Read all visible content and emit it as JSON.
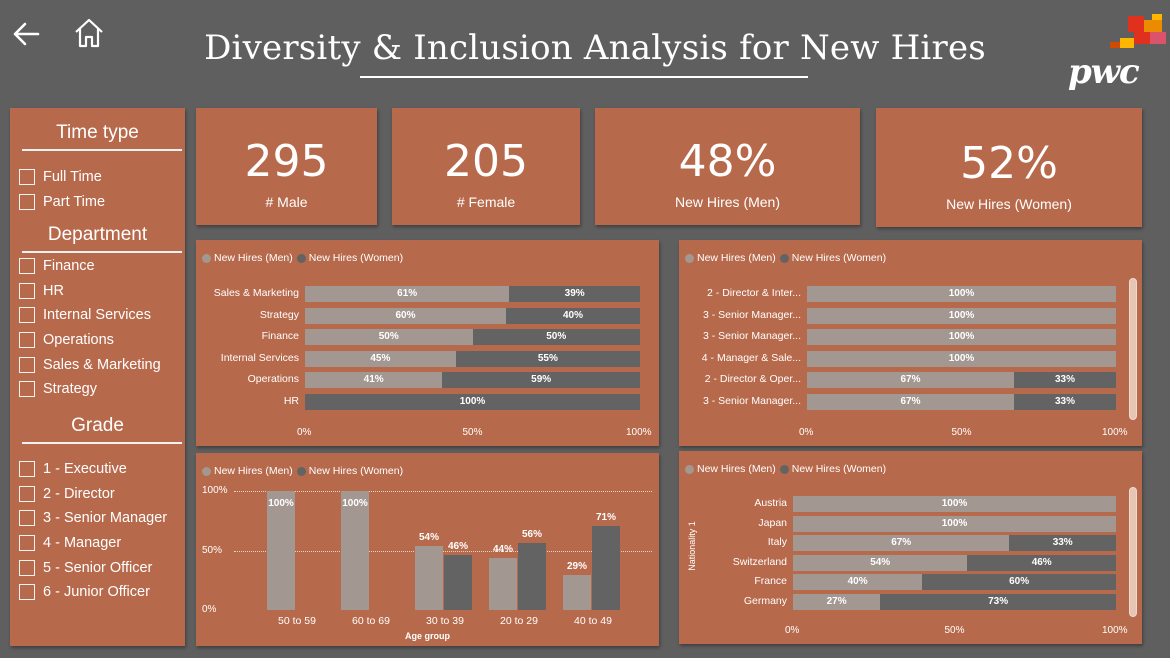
{
  "header": {
    "title": "Diversity & Inclusion Analysis for New Hires",
    "logo_text": "pwc"
  },
  "colors": {
    "panel": "#b7694b",
    "men": "#a39791",
    "women": "#636363",
    "background": "#5f5f5f"
  },
  "slicer": {
    "time_type": {
      "title": "Time type",
      "options": [
        "Full Time",
        "Part Time"
      ]
    },
    "department": {
      "title": "Department",
      "options": [
        "Finance",
        "HR",
        "Internal Services",
        "Operations",
        "Sales & Marketing",
        "Strategy"
      ]
    },
    "grade": {
      "title": "Grade",
      "options": [
        "1 - Executive",
        "2 - Director",
        "3 - Senior Manager",
        "4 - Manager",
        "5 - Senior Officer",
        "6 - Junior Officer"
      ]
    }
  },
  "kpis": [
    {
      "value": "295",
      "label": "# Male"
    },
    {
      "value": "205",
      "label": "# Female"
    },
    {
      "value": "48%",
      "label": "New Hires (Men)"
    },
    {
      "value": "52%",
      "label": "New Hires (Women)"
    }
  ],
  "legend": {
    "men": "New Hires (Men)",
    "women": "New Hires (Women)"
  },
  "chart_data": [
    {
      "type": "bar",
      "orientation": "horizontal",
      "stacked": "100%",
      "categories": [
        "Sales & Marketing",
        "Strategy",
        "Finance",
        "Internal Services",
        "Operations",
        "HR"
      ],
      "series": [
        {
          "name": "New Hires (Men)",
          "values": [
            61,
            60,
            50,
            45,
            41,
            0
          ],
          "labels": [
            "61%",
            "60%",
            "50%",
            "45%",
            "41%",
            ""
          ]
        },
        {
          "name": "New Hires (Women)",
          "values": [
            39,
            40,
            50,
            55,
            59,
            100
          ],
          "labels": [
            "39%",
            "40%",
            "50%",
            "55%",
            "59%",
            "100%"
          ]
        }
      ],
      "xticks": [
        "0%",
        "50%",
        "100%"
      ]
    },
    {
      "type": "bar",
      "orientation": "horizontal",
      "stacked": "100%",
      "categories": [
        "2 - Director & Inter...",
        "3 - Senior Manager...",
        "3 - Senior Manager...",
        "4 - Manager & Sale...",
        "2 - Director & Oper...",
        "3 - Senior Manager..."
      ],
      "series": [
        {
          "name": "New Hires (Men)",
          "values": [
            100,
            100,
            100,
            100,
            67,
            67
          ],
          "labels": [
            "100%",
            "100%",
            "100%",
            "100%",
            "67%",
            "67%"
          ]
        },
        {
          "name": "New Hires (Women)",
          "values": [
            0,
            0,
            0,
            0,
            33,
            33
          ],
          "labels": [
            "",
            "",
            "",
            "",
            "33%",
            "33%"
          ]
        }
      ],
      "xticks": [
        "0%",
        "50%",
        "100%"
      ]
    },
    {
      "type": "bar",
      "orientation": "vertical",
      "categories": [
        "50 to 59",
        "60 to 69",
        "30 to 39",
        "20 to 29",
        "40 to 49"
      ],
      "series": [
        {
          "name": "New Hires (Men)",
          "values": [
            100,
            100,
            54,
            44,
            29
          ],
          "labels": [
            "100%",
            "100%",
            "54%",
            "44%",
            "29%"
          ]
        },
        {
          "name": "New Hires (Women)",
          "values": [
            0,
            0,
            46,
            56,
            71
          ],
          "labels": [
            "",
            "",
            "46%",
            "56%",
            "71%"
          ]
        }
      ],
      "yticks": [
        "100%",
        "50%",
        "0%"
      ],
      "xlabel": "Age group",
      "ylim": [
        0,
        100
      ]
    },
    {
      "type": "bar",
      "orientation": "horizontal",
      "stacked": "100%",
      "categories": [
        "Austria",
        "Japan",
        "Italy",
        "Switzerland",
        "France",
        "Germany"
      ],
      "series": [
        {
          "name": "New Hires (Men)",
          "values": [
            100,
            100,
            67,
            54,
            40,
            27
          ],
          "labels": [
            "100%",
            "100%",
            "67%",
            "54%",
            "40%",
            "27%"
          ]
        },
        {
          "name": "New Hires (Women)",
          "values": [
            0,
            0,
            33,
            46,
            60,
            73
          ],
          "labels": [
            "",
            "",
            "33%",
            "46%",
            "60%",
            "73%"
          ]
        }
      ],
      "xticks": [
        "0%",
        "50%",
        "100%"
      ],
      "ylabel": "Nationality 1"
    }
  ]
}
